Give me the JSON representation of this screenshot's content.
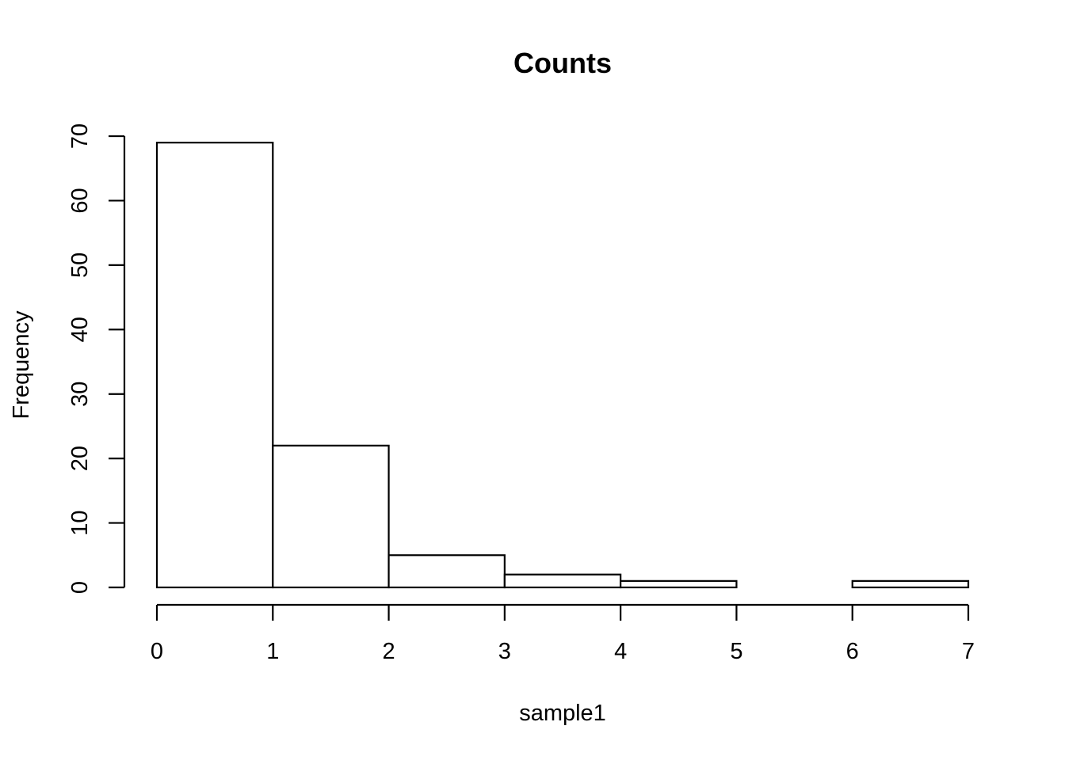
{
  "chart_data": {
    "type": "bar",
    "title": "Counts",
    "xlabel": "sample1",
    "ylabel": "Frequency",
    "bins": [
      {
        "from": 0,
        "to": 1,
        "count": 69
      },
      {
        "from": 1,
        "to": 2,
        "count": 22
      },
      {
        "from": 2,
        "to": 3,
        "count": 5
      },
      {
        "from": 3,
        "to": 4,
        "count": 2
      },
      {
        "from": 4,
        "to": 5,
        "count": 1
      },
      {
        "from": 5,
        "to": 6,
        "count": 0
      },
      {
        "from": 6,
        "to": 7,
        "count": 1
      }
    ],
    "xlim": [
      0,
      7
    ],
    "ylim": [
      0,
      70
    ],
    "x_ticks": [
      "0",
      "1",
      "2",
      "3",
      "4",
      "5",
      "6",
      "7"
    ],
    "y_ticks": [
      "0",
      "10",
      "20",
      "30",
      "40",
      "50",
      "60",
      "70"
    ],
    "grid": false,
    "bar_fill": "#ffffff",
    "bar_stroke": "#000000"
  }
}
